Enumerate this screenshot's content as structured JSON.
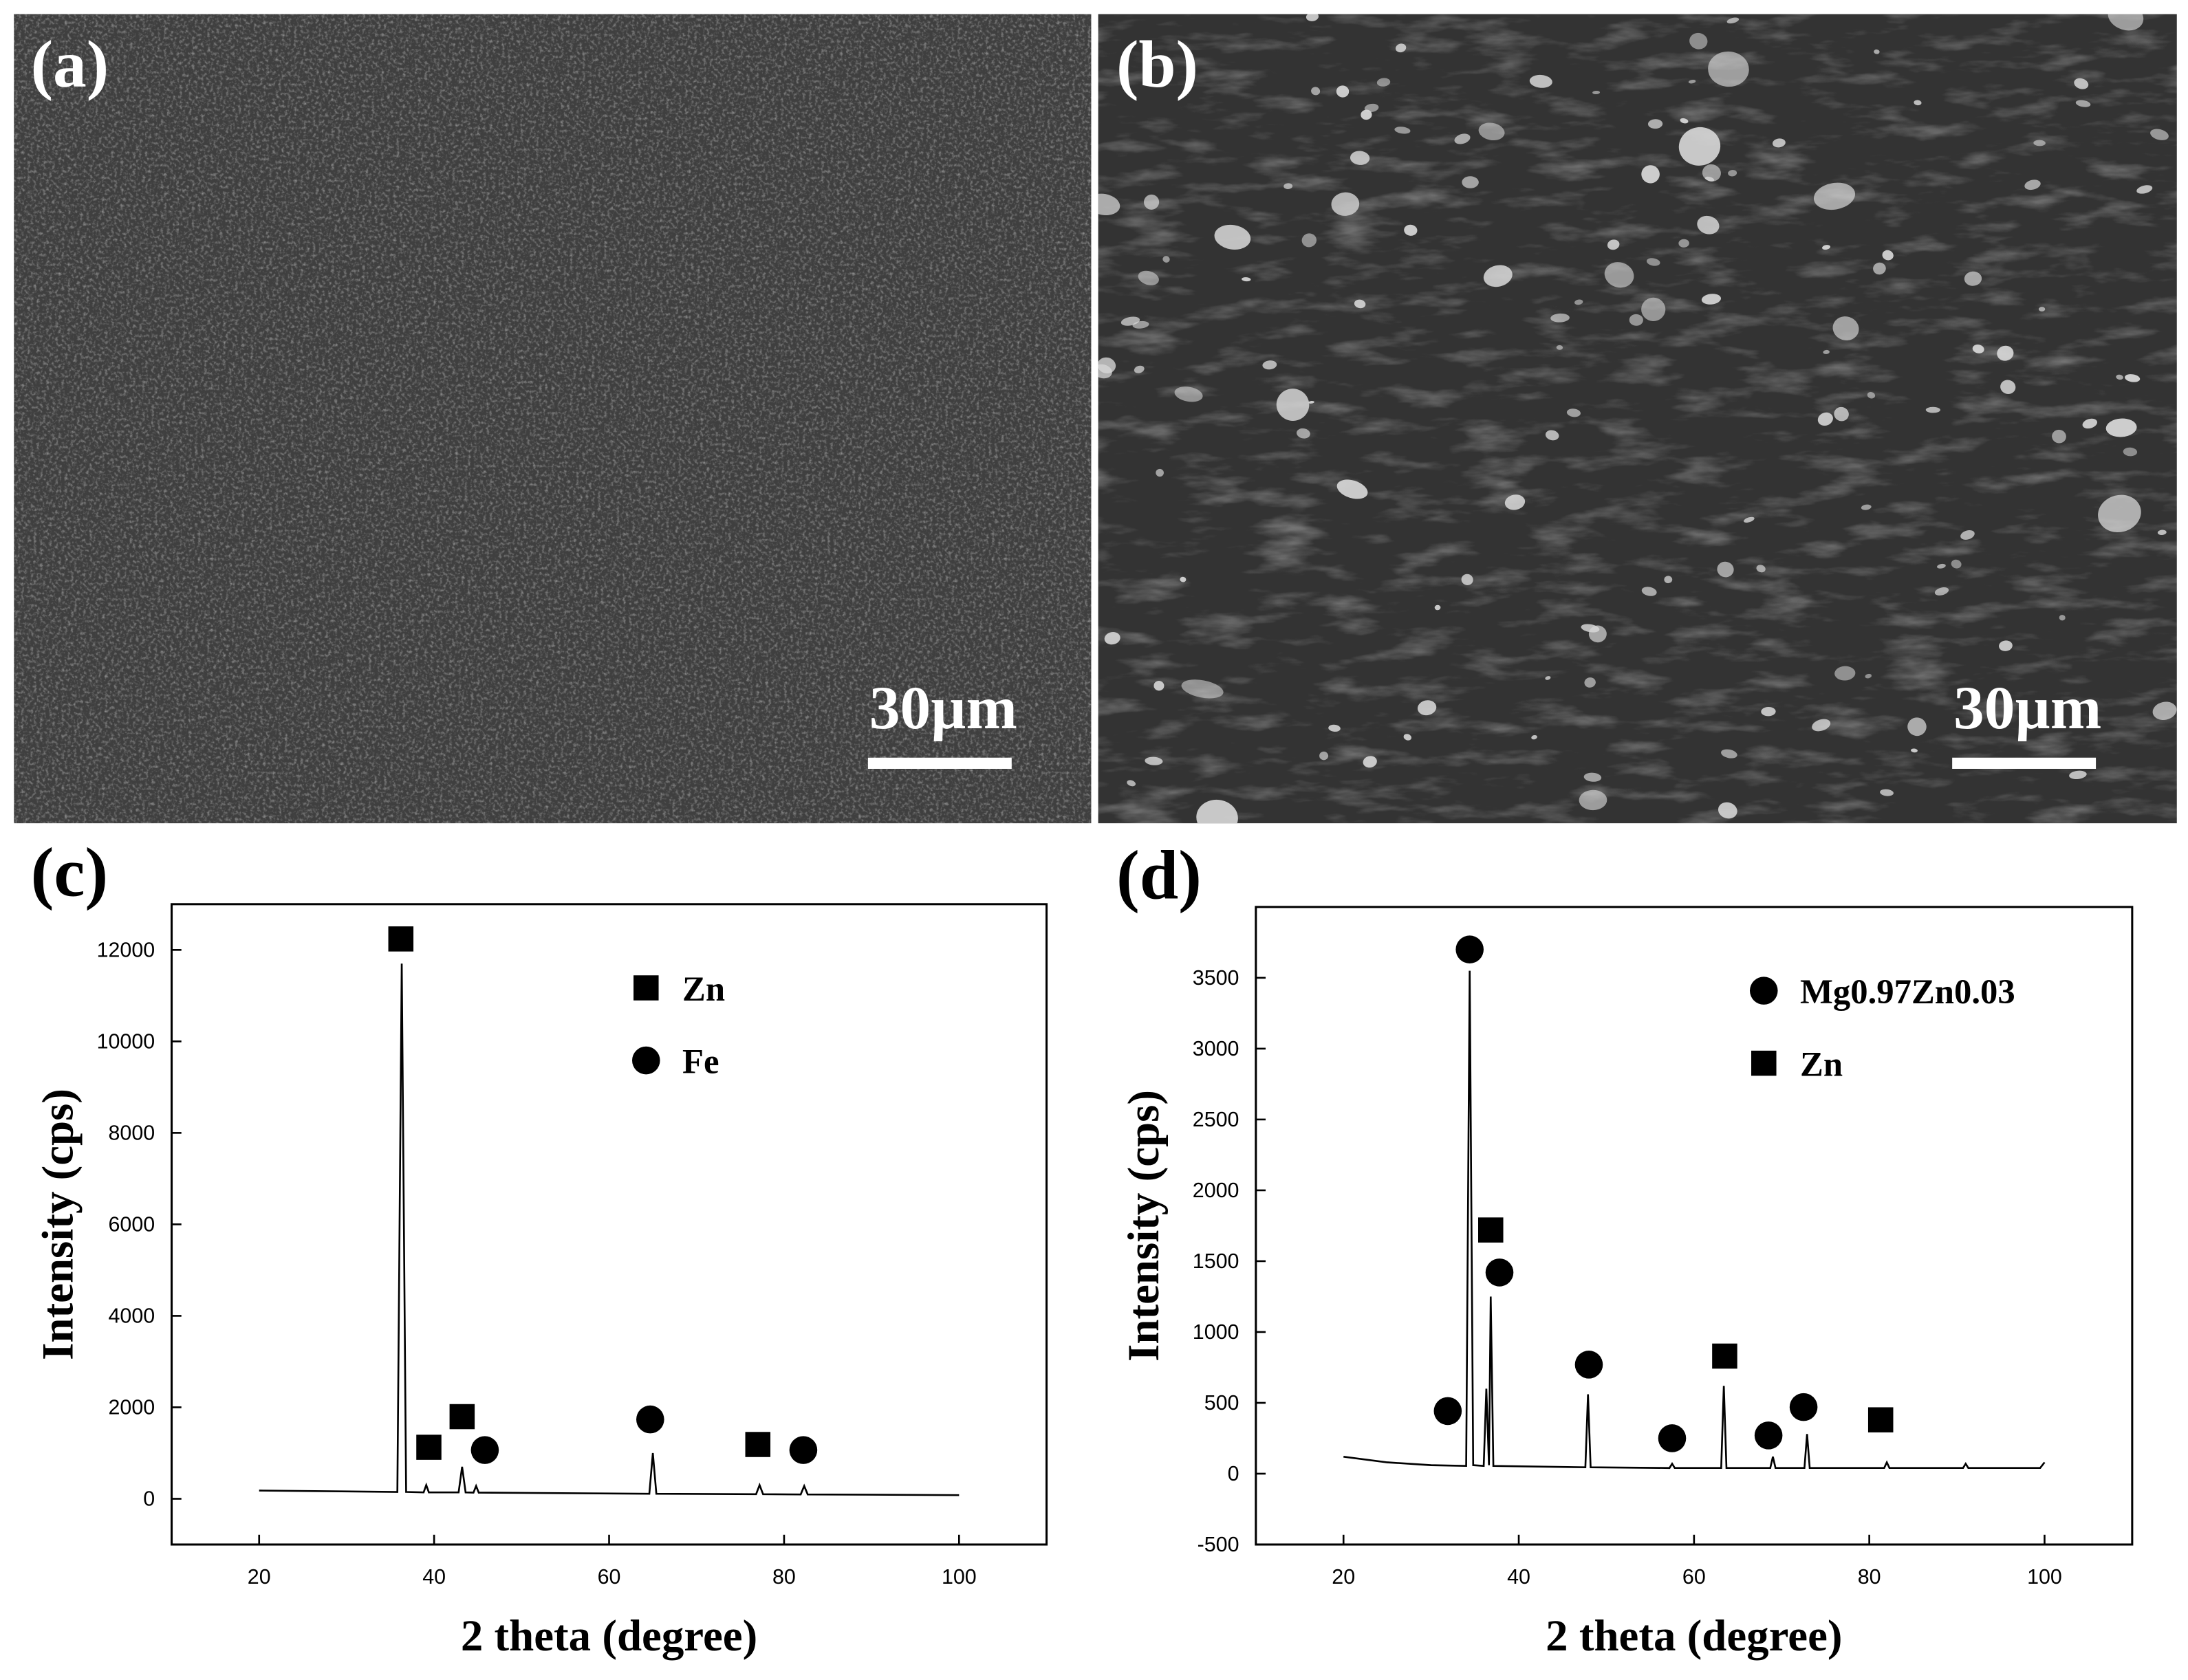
{
  "images": [
    {
      "panel_label": "(a)",
      "scale_bar_label": "30µm"
    },
    {
      "panel_label": "(b)",
      "scale_bar_label": "30µm"
    }
  ],
  "chart_data": [
    {
      "type": "line",
      "panel_label": "(c)",
      "x_label": "2 theta (degree)",
      "y_label": "Intensity (cps)",
      "xlim": [
        10,
        110
      ],
      "xticks": [
        20,
        40,
        60,
        80,
        100
      ],
      "ylim": [
        -1000,
        13000
      ],
      "yticks": [
        0,
        2000,
        4000,
        6000,
        8000,
        10000,
        12000
      ],
      "legend": "upper center",
      "x": [
        20,
        35.8,
        36.3,
        36.8,
        38.8,
        39.1,
        39.4,
        42.8,
        43.2,
        43.6,
        44.5,
        44.8,
        45.1,
        64.6,
        65,
        65.4,
        76.8,
        77.2,
        77.6,
        81.9,
        82.3,
        82.7,
        100
      ],
      "series": [
        {
          "color": "#000000",
          "values": [
            180,
            150,
            11700,
            150,
            140,
            300,
            140,
            140,
            700,
            140,
            135,
            280,
            135,
            110,
            1000,
            110,
            100,
            300,
            100,
            95,
            280,
            95,
            80
          ]
        }
      ],
      "phases": [
        {
          "name": "Zn",
          "marker": "square",
          "x": [
            36.2,
            39.4,
            43.2,
            77
          ],
          "y": [
            12240,
            1126,
            1796,
            1187
          ]
        },
        {
          "name": "Fe",
          "marker": "circle",
          "x": [
            45.8,
            64.7,
            82.2
          ],
          "y": [
            1065,
            1735,
            1065
          ]
        }
      ]
    },
    {
      "type": "line",
      "panel_label": "(d)",
      "x_label": "2 theta (degree)",
      "y_label": "Intensity (cps)",
      "xlim": [
        10,
        110
      ],
      "xticks": [
        20,
        40,
        60,
        80,
        100
      ],
      "ylim": [
        -500,
        4000
      ],
      "yticks": [
        -500,
        0,
        500,
        1000,
        1500,
        2000,
        2500,
        3000,
        3500
      ],
      "legend": "upper right",
      "x": [
        20,
        25,
        30,
        34,
        34.4,
        34.8,
        36,
        36.3,
        36.6,
        36.8,
        37.1,
        47.6,
        47.9,
        48.2,
        57.2,
        57.5,
        57.8,
        63.1,
        63.4,
        63.7,
        68.7,
        69,
        69.3,
        72.6,
        72.9,
        73.2,
        81.7,
        82,
        82.3,
        90.7,
        91,
        91.3,
        99.5,
        100
      ],
      "series": [
        {
          "color": "#000000",
          "values": [
            120,
            80,
            60,
            55,
            3550,
            60,
            55,
            600,
            60,
            1250,
            55,
            45,
            560,
            45,
            40,
            70,
            40,
            40,
            620,
            40,
            40,
            120,
            40,
            40,
            280,
            40,
            40,
            80,
            40,
            40,
            70,
            40,
            40,
            80
          ]
        }
      ],
      "phases": [
        {
          "name": "Mg0.97Zn0.03",
          "marker": "circle",
          "x": [
            31.9,
            34.4,
            37.8,
            48,
            57.5,
            68.5,
            72.5
          ],
          "y": [
            442,
            3700,
            1420,
            770,
            250,
            270,
            470
          ]
        },
        {
          "name": "Zn",
          "marker": "square",
          "x": [
            36.8,
            63.5,
            81.3
          ],
          "y": [
            1720,
            830,
            380
          ]
        }
      ]
    }
  ]
}
